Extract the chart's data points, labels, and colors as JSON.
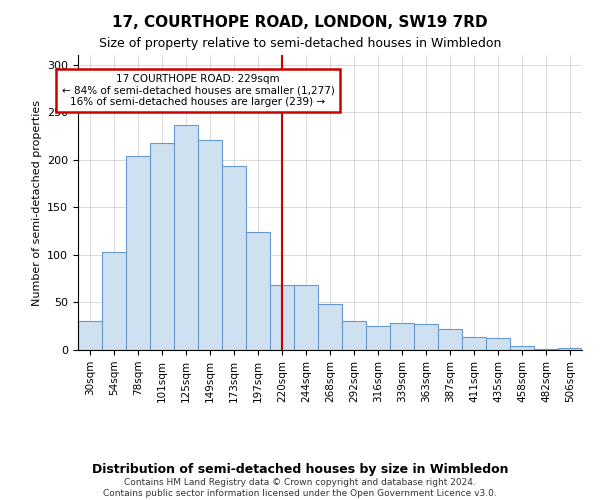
{
  "title": "17, COURTHOPE ROAD, LONDON, SW19 7RD",
  "subtitle": "Size of property relative to semi-detached houses in Wimbledon",
  "xlabel_bottom": "Distribution of semi-detached houses by size in Wimbledon",
  "ylabel": "Number of semi-detached properties",
  "footnote": "Contains HM Land Registry data © Crown copyright and database right 2024.\nContains public sector information licensed under the Open Government Licence v3.0.",
  "categories": [
    "30sqm",
    "54sqm",
    "78sqm",
    "101sqm",
    "125sqm",
    "149sqm",
    "173sqm",
    "197sqm",
    "220sqm",
    "244sqm",
    "268sqm",
    "292sqm",
    "316sqm",
    "339sqm",
    "363sqm",
    "387sqm",
    "411sqm",
    "435sqm",
    "458sqm",
    "482sqm",
    "506sqm"
  ],
  "values": [
    30,
    103,
    204,
    218,
    236,
    221,
    193,
    124,
    68,
    68,
    48,
    30,
    25,
    28,
    27,
    22,
    14,
    13,
    4,
    1,
    2
  ],
  "bar_color": "#cfe0f0",
  "bar_edge_color": "#6699cc",
  "highlight_index": 8,
  "highlight_line_color": "#cc0000",
  "annotation_title": "17 COURTHOPE ROAD: 229sqm",
  "annotation_line1": "← 84% of semi-detached houses are smaller (1,277)",
  "annotation_line2": "16% of semi-detached houses are larger (239) →",
  "annotation_box_edge": "#cc0000",
  "ylim": [
    0,
    310
  ],
  "yticks": [
    0,
    50,
    100,
    150,
    200,
    250,
    300
  ],
  "title_fontsize": 11,
  "subtitle_fontsize": 9
}
